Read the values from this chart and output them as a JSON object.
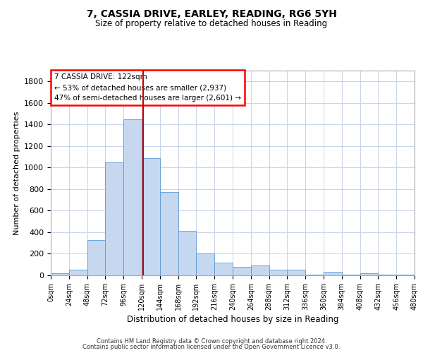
{
  "title_line1": "7, CASSIA DRIVE, EARLEY, READING, RG6 5YH",
  "title_line2": "Size of property relative to detached houses in Reading",
  "xlabel": "Distribution of detached houses by size in Reading",
  "ylabel": "Number of detached properties",
  "footer_line1": "Contains HM Land Registry data © Crown copyright and database right 2024.",
  "footer_line2": "Contains public sector information licensed under the Open Government Licence v3.0.",
  "annotation_line1": "7 CASSIA DRIVE: 122sqm",
  "annotation_line2": "← 53% of detached houses are smaller (2,937)",
  "annotation_line3": "47% of semi-detached houses are larger (2,601) →",
  "property_size": 122,
  "bin_edges": [
    0,
    24,
    48,
    72,
    96,
    120,
    144,
    168,
    192,
    216,
    240,
    264,
    288,
    312,
    336,
    360,
    384,
    408,
    432,
    456,
    480
  ],
  "bar_heights": [
    20,
    50,
    330,
    1050,
    1450,
    1090,
    770,
    410,
    200,
    115,
    80,
    90,
    50,
    50,
    5,
    35,
    5,
    20,
    5,
    5
  ],
  "bar_color": "#c5d8f0",
  "bar_edge_color": "#5b9bd5",
  "vline_color": "#cc0000",
  "background_color": "#ffffff",
  "grid_color": "#c8d4e8",
  "ylim": [
    0,
    1900
  ],
  "yticks": [
    0,
    200,
    400,
    600,
    800,
    1000,
    1200,
    1400,
    1600,
    1800
  ]
}
